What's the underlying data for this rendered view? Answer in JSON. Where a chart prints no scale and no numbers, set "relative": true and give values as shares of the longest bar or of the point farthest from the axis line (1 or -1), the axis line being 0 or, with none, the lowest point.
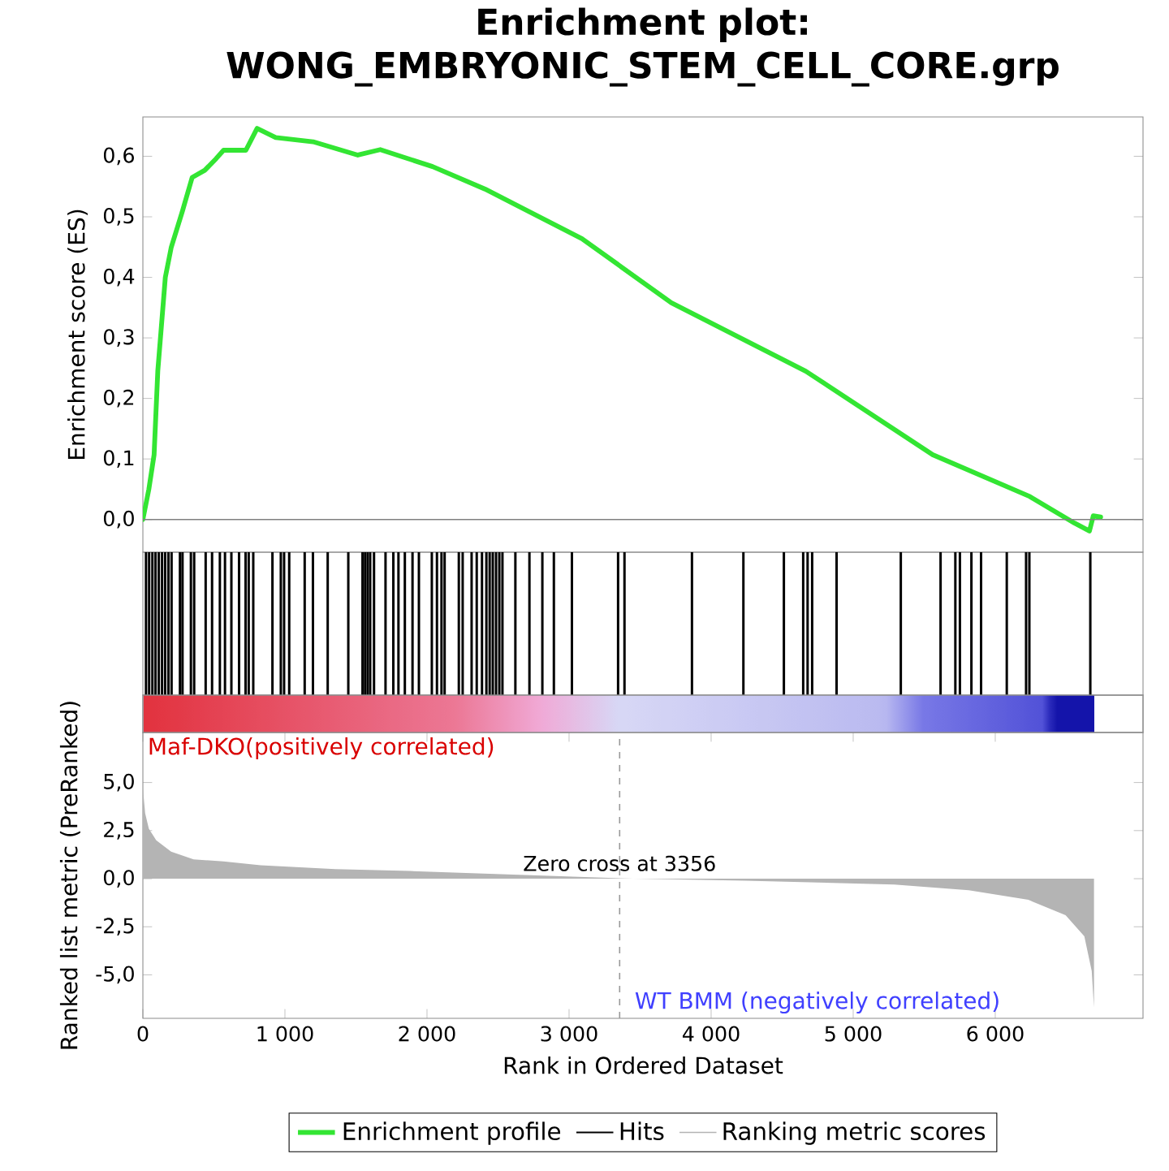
{
  "chart_data": [
    {
      "type": "line",
      "title": "Enrichment plot: WONG_EMBRYONIC_STEM_CELL_CORE.grp",
      "ylabel": "Enrichment score (ES)",
      "tick_labels": "y",
      "x": [
        0,
        42,
        79,
        105,
        158,
        200,
        279,
        347,
        436,
        515,
        568,
        725,
        804,
        935,
        1198,
        1513,
        1671,
        2039,
        2407,
        3090,
        3720,
        4666,
        5560,
        6243,
        6558,
        6663,
        6690,
        6742
      ],
      "series": [
        {
          "name": "Enrichment profile",
          "color": "#33e533",
          "values": [
            0,
            0.05,
            0.107,
            0.245,
            0.4,
            0.45,
            0.51,
            0.565,
            0.577,
            0.596,
            0.61,
            0.61,
            0.646,
            0.631,
            0.624,
            0.602,
            0.611,
            0.583,
            0.546,
            0.464,
            0.358,
            0.245,
            0.107,
            0.038,
            -0.006,
            -0.019,
            0.006,
            0.004
          ]
        }
      ],
      "xlim": [
        0,
        7040
      ],
      "ylim": [
        -0.054,
        0.665
      ],
      "yticks": [
        {
          "value": 0,
          "label": "0,0"
        },
        {
          "value": 0.1,
          "label": "0,1"
        },
        {
          "value": 0.2,
          "label": "0,2"
        },
        {
          "value": 0.3,
          "label": "0,3"
        },
        {
          "value": 0.4,
          "label": "0,4"
        },
        {
          "value": 0.5,
          "label": "0,5"
        },
        {
          "value": 0.6,
          "label": "0,6"
        }
      ],
      "ref_lines": [
        {
          "axis": "y",
          "value": 0,
          "color": "#808080"
        }
      ]
    },
    {
      "type": "bar",
      "relative": true,
      "tick_labels": false,
      "xlim": [
        0,
        7040
      ],
      "x": [
        22,
        44,
        67,
        89,
        112,
        135,
        157,
        180,
        202,
        261,
        279,
        338,
        361,
        442,
        487,
        542,
        578,
        623,
        677,
        723,
        745,
        777,
        912,
        971,
        994,
        1030,
        1139,
        1197,
        1301,
        1446,
        1546,
        1564,
        1582,
        1600,
        1627,
        1708,
        1763,
        1799,
        1844,
        1898,
        1943,
        2034,
        2070,
        2102,
        2124,
        2224,
        2251,
        2314,
        2350,
        2387,
        2418,
        2441,
        2463,
        2486,
        2509,
        2531,
        2622,
        2721,
        2812,
        2893,
        3020,
        3345,
        3390,
        3865,
        4227,
        4512,
        4648,
        4679,
        4711,
        4883,
        5335,
        5615,
        5719,
        5751,
        5832,
        5900,
        6081,
        6217,
        6240,
        6669
      ],
      "series": [
        {
          "name": "Hits",
          "color": "#000000",
          "values": [
            1,
            1,
            1,
            1,
            1,
            1,
            1,
            1,
            1,
            1,
            1,
            1,
            1,
            1,
            1,
            1,
            1,
            1,
            1,
            1,
            1,
            1,
            1,
            1,
            1,
            1,
            1,
            1,
            1,
            1,
            1,
            1,
            1,
            1,
            1,
            1,
            1,
            1,
            1,
            1,
            1,
            1,
            1,
            1,
            1,
            1,
            1,
            1,
            1,
            1,
            1,
            1,
            1,
            1,
            1,
            1,
            1,
            1,
            1,
            1,
            1,
            1,
            1,
            1,
            1,
            1,
            1,
            1,
            1,
            1,
            1,
            1,
            1,
            1,
            1,
            1,
            1,
            1,
            1,
            1
          ]
        }
      ]
    },
    {
      "type": "area",
      "xlabel": "Rank in Ordered Dataset",
      "ylabel": "Ranked list metric (PreRanked)",
      "legend": "bottom",
      "x": [
        0,
        16,
        42,
        94,
        199,
        357,
        567,
        829,
        1354,
        1878,
        2665,
        3452,
        4240,
        5289,
        5813,
        6233,
        6495,
        6627,
        6679,
        6695
      ],
      "series": [
        {
          "name": "Ranking metric scores",
          "color": "#b4b4b4",
          "values": [
            4.7,
            3.4,
            2.6,
            2.0,
            1.4,
            1.0,
            0.9,
            0.7,
            0.5,
            0.4,
            0.2,
            0,
            -0.1,
            -0.3,
            -0.6,
            -1.1,
            -1.9,
            -3.0,
            -4.8,
            -6.7
          ]
        }
      ],
      "xlim": [
        0,
        7040
      ],
      "ylim": [
        -7.26,
        7.6
      ],
      "xticks": [
        0,
        {
          "value": 1000,
          "label": "1 000"
        },
        {
          "value": 2000,
          "label": "2 000"
        },
        {
          "value": 3000,
          "label": "3 000"
        },
        {
          "value": 4000,
          "label": "4 000"
        },
        {
          "value": 5000,
          "label": "5 000"
        },
        {
          "value": 6000,
          "label": "6 000"
        }
      ],
      "yticks": [
        {
          "value": 5,
          "label": "5,0"
        },
        {
          "value": 2.5,
          "label": "2,5"
        },
        {
          "value": 0,
          "label": "0,0"
        },
        {
          "value": -2.5,
          "label": "-2,5"
        },
        {
          "value": -5,
          "label": "-5,0"
        }
      ],
      "ref_lines": [
        {
          "axis": "x",
          "value": 3356,
          "label": "Zero cross at 3356",
          "line_style": "dashed",
          "color": "#999999"
        }
      ],
      "annotations": [
        "Maf-DKO(positively correlated)",
        "WT BMM (negatively correlated)"
      ]
    }
  ]
}
